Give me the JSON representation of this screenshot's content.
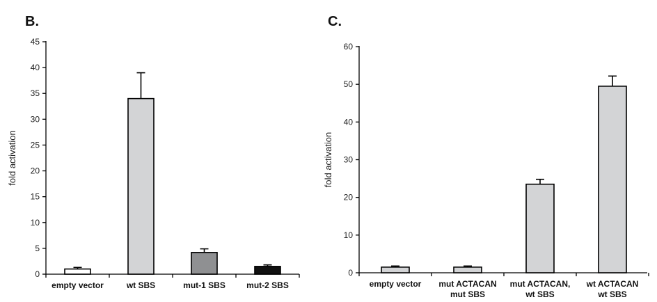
{
  "chart_data": [
    {
      "type": "bar",
      "panel_label": "B.",
      "ylabel": "fold activation",
      "xlabel": "",
      "ylim": [
        0,
        45
      ],
      "yticks": [
        0,
        5,
        10,
        15,
        20,
        25,
        30,
        35,
        40,
        45
      ],
      "categories": [
        [
          "empty vector"
        ],
        [
          "wt SBS"
        ],
        [
          "mut-1 SBS"
        ],
        [
          "mut-2 SBS"
        ]
      ],
      "values": [
        1,
        34,
        4.2,
        1.5
      ],
      "errors": [
        0.3,
        5,
        0.7,
        0.3
      ],
      "colors": [
        "#ffffff",
        "#d3d4d6",
        "#8f9092",
        "#111111"
      ],
      "grid": false
    },
    {
      "type": "bar",
      "panel_label": "C.",
      "ylabel": "fold activation",
      "xlabel": "",
      "ylim": [
        0,
        60
      ],
      "yticks": [
        0,
        10,
        20,
        30,
        40,
        50,
        60
      ],
      "categories": [
        [
          "empty vector"
        ],
        [
          "mut ACTACAN",
          "mut SBS"
        ],
        [
          "mut ACTACAN,",
          "wt SBS"
        ],
        [
          "wt ACTACAN",
          "wt SBS"
        ]
      ],
      "values": [
        1.5,
        1.5,
        23.5,
        49.5
      ],
      "errors": [
        0.3,
        0.3,
        1.3,
        2.7
      ],
      "colors": [
        "#d3d4d6",
        "#d3d4d6",
        "#d3d4d6",
        "#d3d4d6"
      ],
      "grid": false
    }
  ]
}
